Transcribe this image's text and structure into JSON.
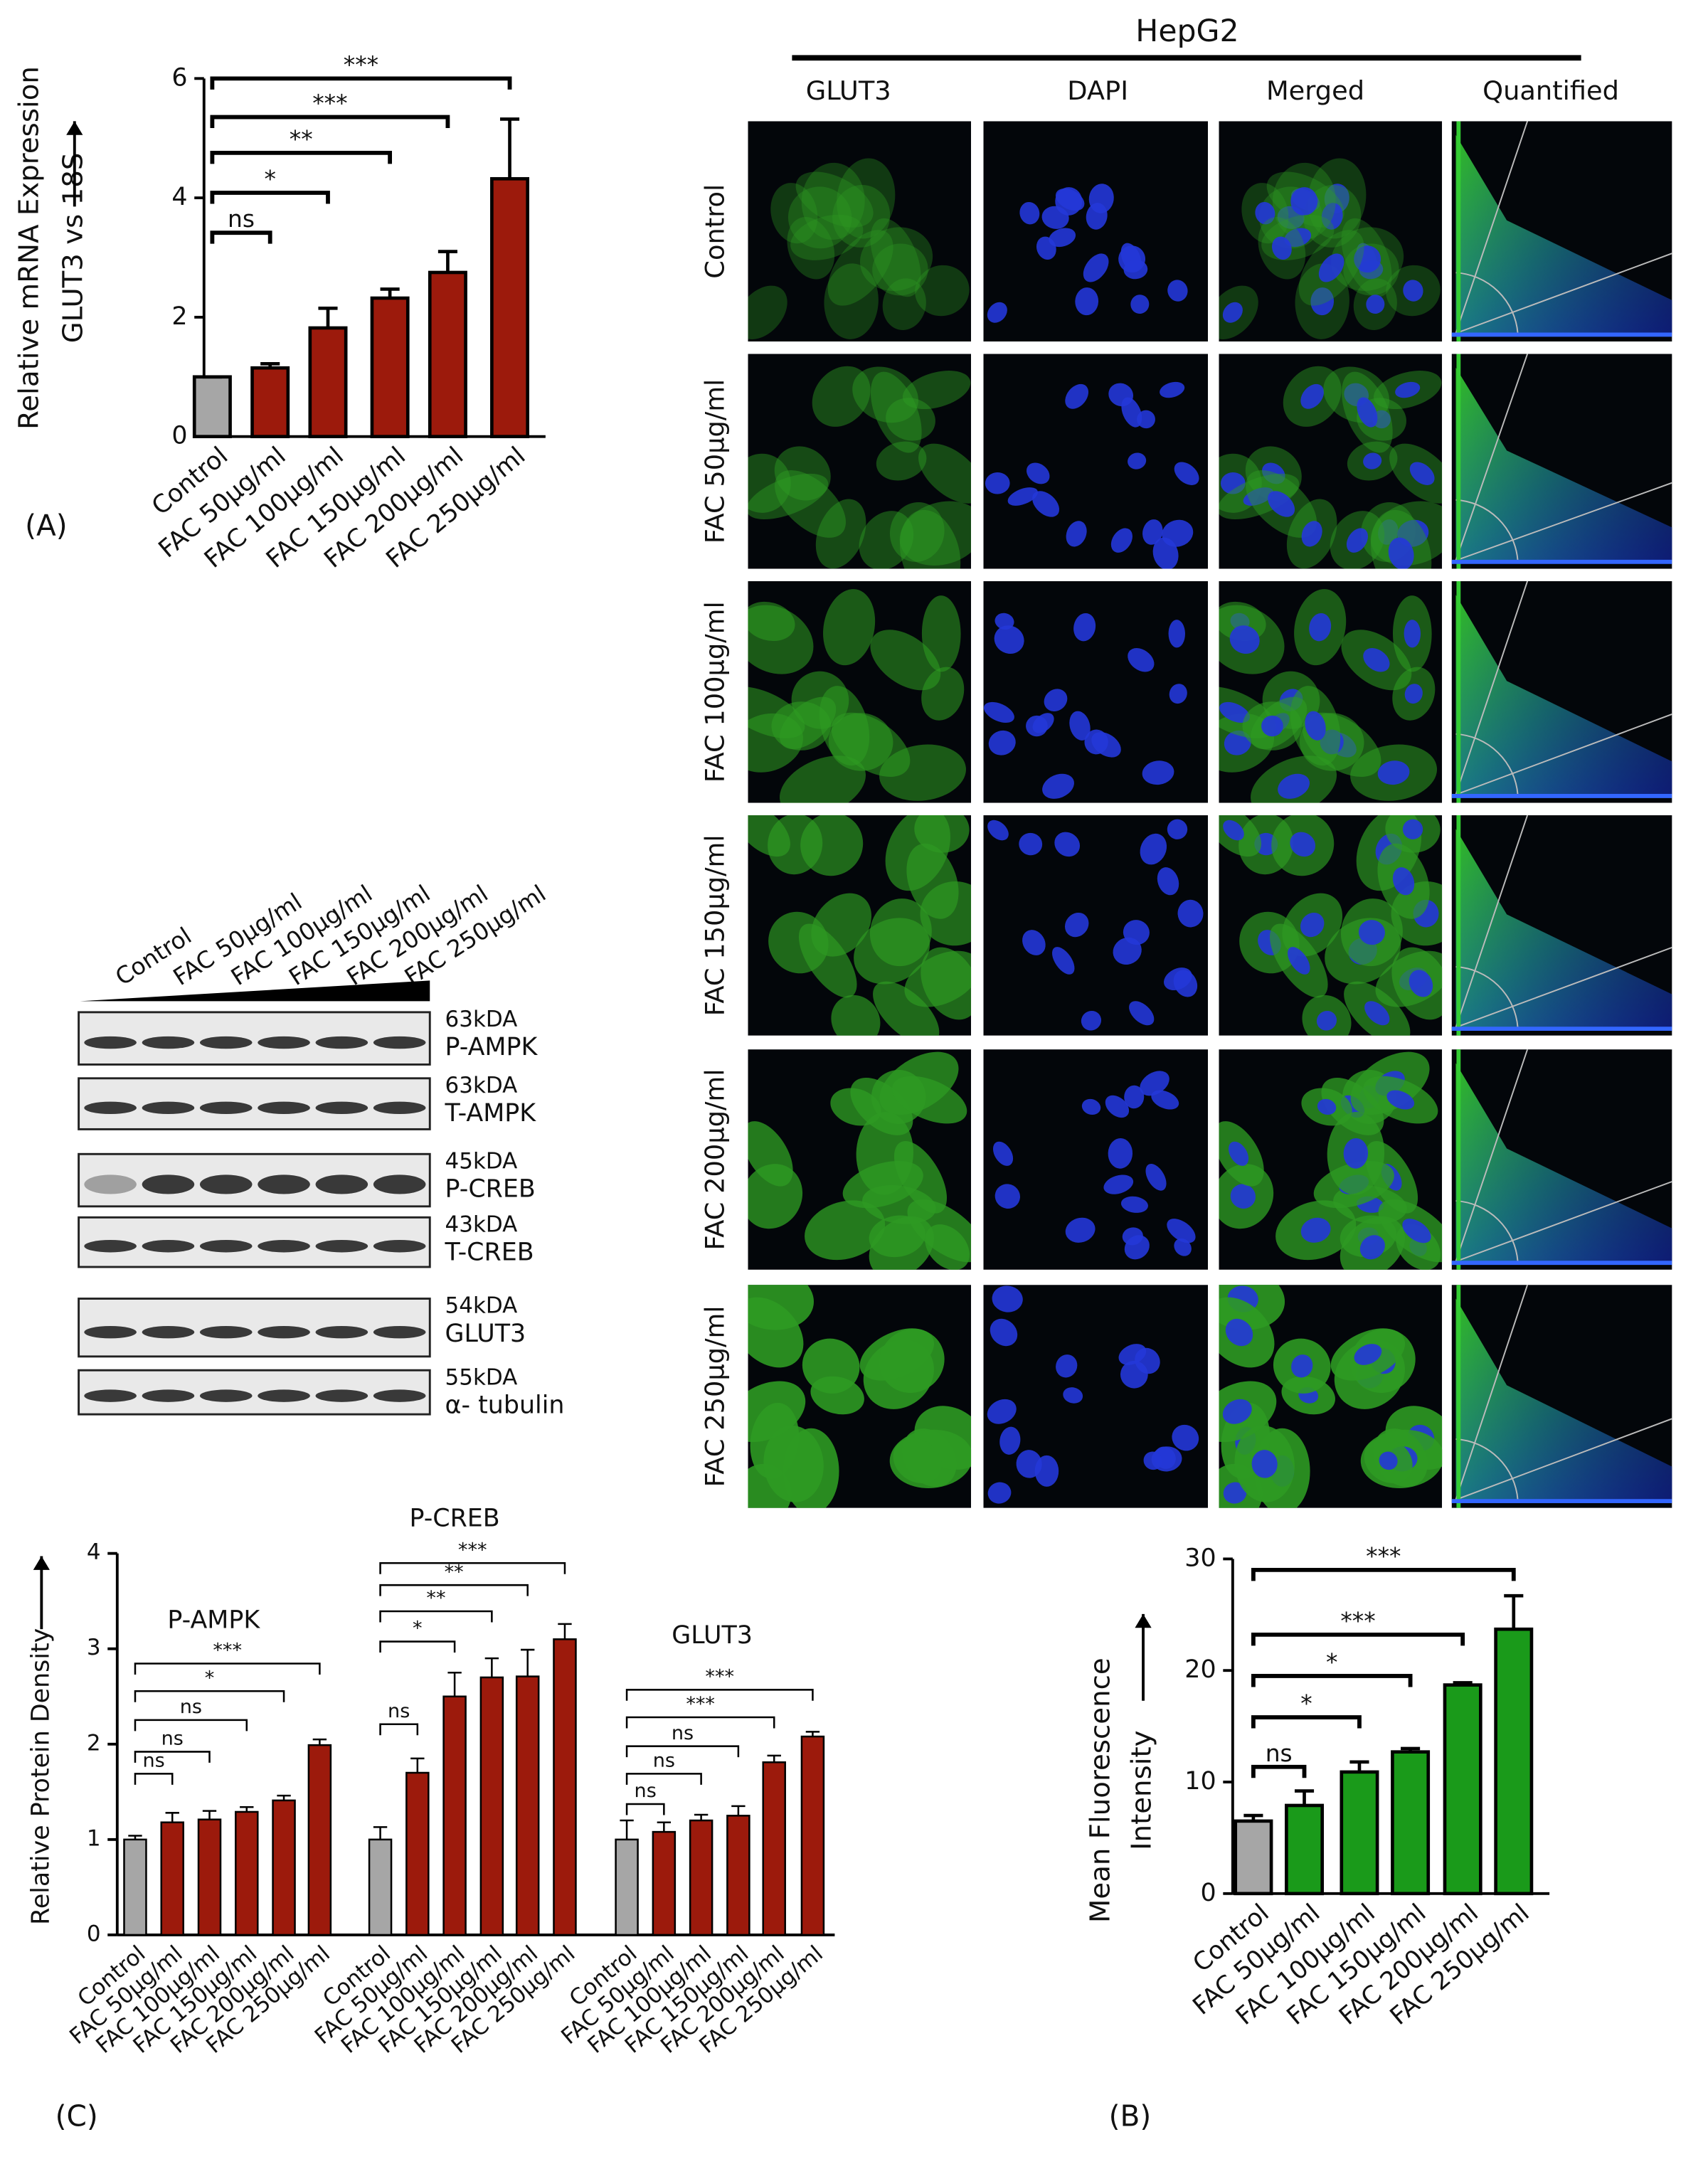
{
  "chart_data": [
    {
      "type": "bar",
      "panel_label": "(A)",
      "y_label": [
        "Relative mRNA Expression",
        "GLUT3 vs 18S"
      ],
      "categories": [
        "Control",
        "FAC 50µg/ml",
        "FAC 100µg/ml",
        "FAC 150µg/ml",
        "FAC 200µg/ml",
        "FAC 250µg/ml"
      ],
      "values": [
        1,
        1.15,
        1.82,
        2.32,
        2.75,
        4.32
      ],
      "errors": [
        0,
        0.07,
        0.33,
        0.15,
        0.35,
        1.0
      ],
      "colors": [
        "#a6a6a6",
        "#9c1a0c",
        "#9c1a0c",
        "#9c1a0c",
        "#9c1a0c",
        "#9c1a0c"
      ],
      "ylim": [
        0,
        6
      ],
      "yticks": [
        0,
        2,
        4,
        6
      ],
      "significance": [
        "ns",
        "*",
        "**",
        "***",
        "***"
      ]
    },
    {
      "type": "bar",
      "panel_label": "(B)",
      "y_label": [
        "Mean Fluorescence",
        "Intensity"
      ],
      "categories": [
        "Control",
        "FAC 50µg/ml",
        "FAC 100µg/ml",
        "FAC 150µg/ml",
        "FAC 200µg/ml",
        "FAC 250µg/ml"
      ],
      "values": [
        6.5,
        7.9,
        10.9,
        12.7,
        18.7,
        23.7
      ],
      "errors": [
        0.5,
        1.3,
        0.9,
        0.3,
        0.2,
        3.0
      ],
      "colors": [
        "#a6a6a6",
        "#1a9a1a",
        "#1a9a1a",
        "#1a9a1a",
        "#1a9a1a",
        "#1a9a1a"
      ],
      "ylim": [
        0,
        30
      ],
      "yticks": [
        0,
        10,
        20,
        30
      ],
      "significance": [
        "ns",
        "*",
        "*",
        "***",
        "***"
      ]
    },
    {
      "type": "grouped_bar",
      "panel_label": "(C)",
      "y_label": [
        "Relative Protein Density"
      ],
      "categories": [
        "Control",
        "FAC 50µg/ml",
        "FAC 100µg/ml",
        "FAC 150µg/ml",
        "FAC 200µg/ml",
        "FAC 250µg/ml"
      ],
      "colors": [
        "#a6a6a6",
        "#9c1a0c",
        "#9c1a0c",
        "#9c1a0c",
        "#9c1a0c",
        "#9c1a0c"
      ],
      "ylim": [
        0,
        4
      ],
      "yticks": [
        0,
        1,
        2,
        3,
        4
      ],
      "groups": [
        {
          "name": "P-AMPK",
          "values": [
            1.0,
            1.18,
            1.21,
            1.29,
            1.41,
            1.99
          ],
          "errors": [
            0.04,
            0.1,
            0.09,
            0.05,
            0.05,
            0.06
          ],
          "significance": [
            "ns",
            "ns",
            "ns",
            "*",
            "***"
          ]
        },
        {
          "name": "P-CREB",
          "values": [
            1.0,
            1.7,
            2.5,
            2.7,
            2.71,
            3.1
          ],
          "errors": [
            0.13,
            0.15,
            0.25,
            0.2,
            0.28,
            0.16
          ],
          "significance": [
            "ns",
            "*",
            "**",
            "**",
            "***"
          ]
        },
        {
          "name": "GLUT3",
          "values": [
            1.0,
            1.08,
            1.2,
            1.25,
            1.81,
            2.08
          ],
          "errors": [
            0.2,
            0.1,
            0.06,
            0.1,
            0.07,
            0.05
          ],
          "significance": [
            "ns",
            "ns",
            "ns",
            "***",
            "***"
          ]
        }
      ]
    }
  ],
  "blot": {
    "lanes": [
      "Control",
      "FAC 50µg/ml",
      "FAC 100µg/ml",
      "FAC 150µg/ml",
      "FAC 200µg/ml",
      "FAC 250µg/ml"
    ],
    "rows": [
      {
        "kda": "63kDA",
        "name": "P-AMPK"
      },
      {
        "kda": "63kDA",
        "name": "T-AMPK"
      },
      {
        "kda": "45kDA",
        "name": "P-CREB"
      },
      {
        "kda": "43kDA",
        "name": "T-CREB"
      },
      {
        "kda": "54kDA",
        "name": "GLUT3"
      },
      {
        "kda": "55kDA",
        "name": "α- tubulin"
      }
    ]
  },
  "microscopy": {
    "title": "HepG2",
    "columns": [
      "GLUT3",
      "DAPI",
      "Merged",
      "Quantified"
    ],
    "rows": [
      "Control",
      "FAC 50µg/ml",
      "FAC 100µg/ml",
      "FAC 150µg/ml",
      "FAC 200µg/ml",
      "FAC 250µg/ml"
    ]
  }
}
